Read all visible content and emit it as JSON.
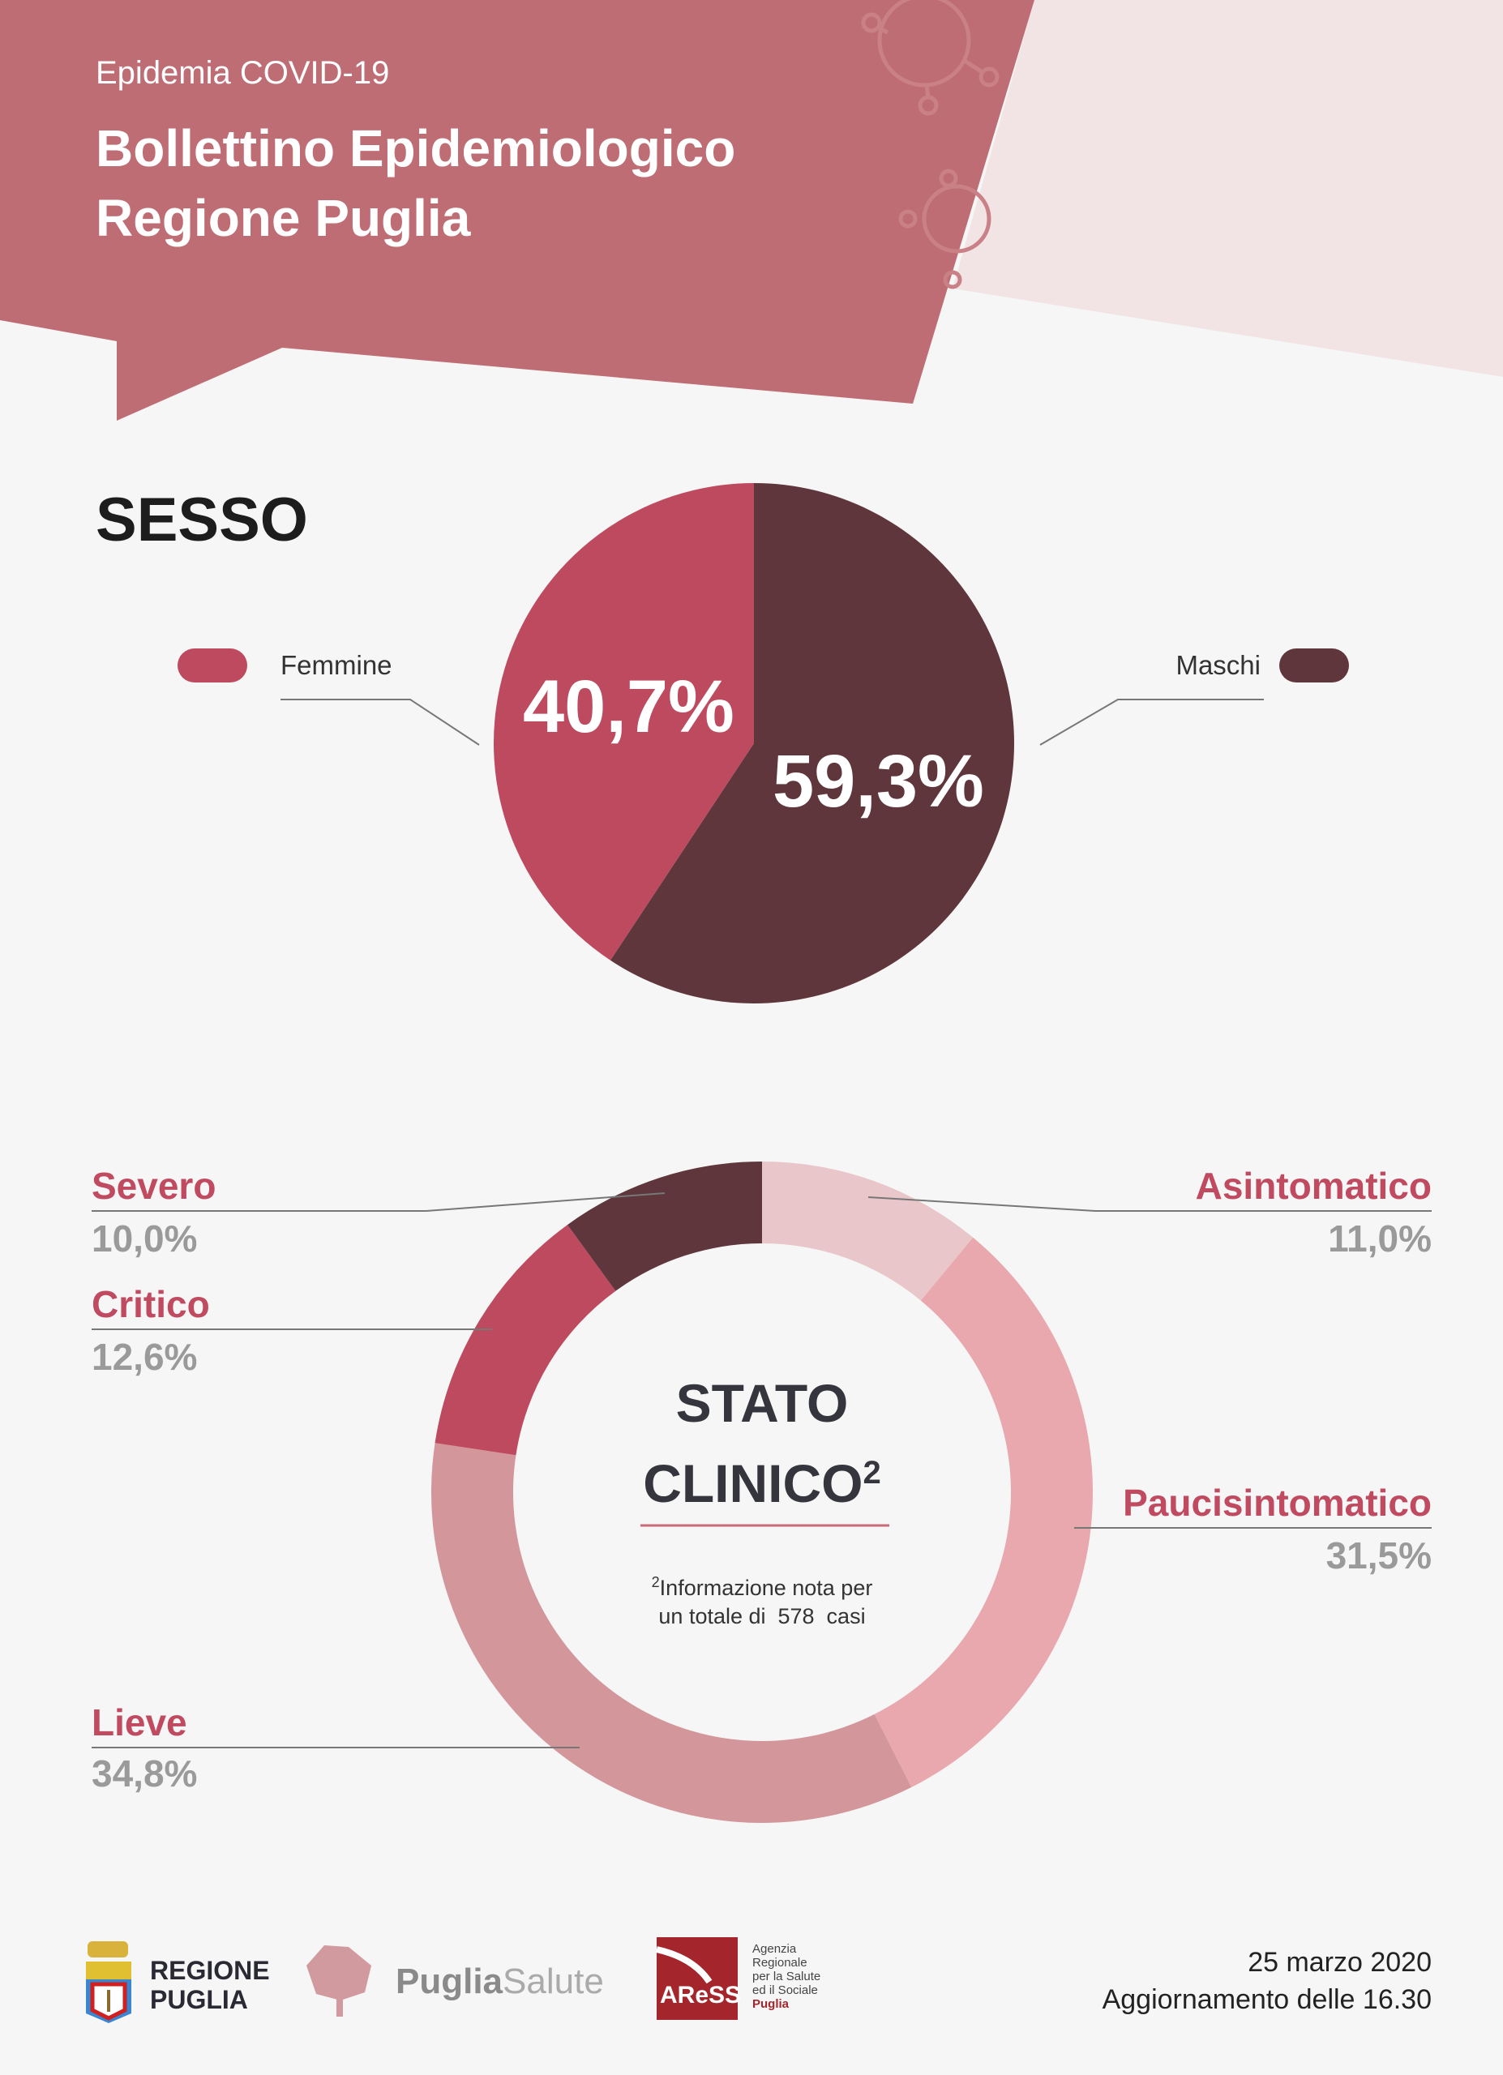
{
  "header": {
    "subtitle": "Epidemia COVID-19",
    "title_line1": "Bollettino Epidemiologico",
    "title_line2": "Regione Puglia"
  },
  "colors": {
    "header": "#bf6d74",
    "header_light": "#f2e4e4",
    "background": "#f6f6f6",
    "femmine": "#be4a5f",
    "maschi": "#5e363b",
    "label": "#c04a60"
  },
  "chart_data": [
    {
      "type": "pie",
      "title": "SESSO",
      "slices": [
        {
          "label": "Femmine",
          "value": 40.7,
          "text": "40,7%",
          "color": "#be4a5f"
        },
        {
          "label": "Maschi",
          "value": 59.3,
          "text": "59,3%",
          "color": "#5e363b"
        }
      ]
    },
    {
      "type": "donut",
      "title": "STATO CLINICO",
      "title_line1": "STATO",
      "title_line2": "CLINICO",
      "superscript": "2",
      "note_line1": "Informazione nota per",
      "note_line2": "un totale di  578  casi",
      "total_cases": 578,
      "slices": [
        {
          "label": "Asintomatico",
          "value": 11.0,
          "text": "11,0%",
          "color": "#e9c6c9"
        },
        {
          "label": "Paucisintomatico",
          "value": 31.5,
          "text": "31,5%",
          "color": "#e8a8ad"
        },
        {
          "label": "Lieve",
          "value": 34.8,
          "text": "34,8%",
          "color": "#d3979b"
        },
        {
          "label": "Critico",
          "value": 12.6,
          "text": "12,6%",
          "color": "#be4a5f"
        },
        {
          "label": "Severo",
          "value": 10.0,
          "text": "10,0%",
          "color": "#5e363b"
        }
      ]
    }
  ],
  "footer": {
    "logo1_line1": "REGIONE",
    "logo1_line2": "PUGLIA",
    "logo2_bold": "Puglia",
    "logo2_light": "Salute",
    "logo3_mark": "AReSS",
    "logo3_text": [
      "Agenzia",
      "Regionale",
      "per la Salute",
      "ed il Sociale",
      "Puglia"
    ],
    "date": "25 marzo 2020",
    "update": "Aggiornamento delle 16.30"
  }
}
